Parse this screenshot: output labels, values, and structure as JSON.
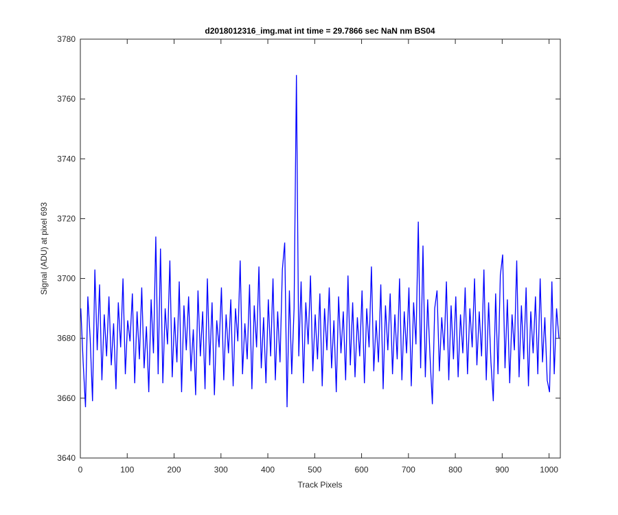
{
  "chart_data": {
    "type": "line",
    "title": "d2018012316_img.mat int time = 29.7866 sec  NaN nm BS04",
    "x_label": "Track Pixels",
    "y_label": "Signal (ADU) at pixel 693",
    "xlim": [
      0,
      1024
    ],
    "ylim": [
      3640,
      3780
    ],
    "xticks": [
      0,
      100,
      200,
      300,
      400,
      500,
      600,
      700,
      800,
      900,
      1000
    ],
    "yticks": [
      3640,
      3660,
      3680,
      3700,
      3720,
      3740,
      3760,
      3780
    ],
    "x": [
      1,
      6,
      11,
      16,
      21,
      26,
      31,
      36,
      41,
      46,
      51,
      56,
      61,
      66,
      71,
      76,
      81,
      86,
      91,
      96,
      101,
      106,
      111,
      116,
      121,
      126,
      131,
      136,
      141,
      146,
      151,
      156,
      161,
      166,
      171,
      176,
      181,
      186,
      191,
      196,
      201,
      206,
      211,
      216,
      221,
      226,
      231,
      236,
      241,
      246,
      251,
      256,
      261,
      266,
      271,
      276,
      281,
      286,
      291,
      296,
      301,
      306,
      311,
      316,
      321,
      326,
      331,
      336,
      341,
      346,
      351,
      356,
      361,
      366,
      371,
      376,
      381,
      386,
      391,
      396,
      401,
      406,
      411,
      416,
      421,
      426,
      431,
      436,
      441,
      446,
      451,
      456,
      461,
      466,
      471,
      476,
      481,
      486,
      491,
      496,
      501,
      506,
      511,
      516,
      521,
      526,
      531,
      536,
      541,
      546,
      551,
      556,
      561,
      566,
      571,
      576,
      581,
      586,
      591,
      596,
      601,
      606,
      611,
      616,
      621,
      626,
      631,
      636,
      641,
      646,
      651,
      656,
      661,
      666,
      671,
      676,
      681,
      686,
      691,
      696,
      701,
      706,
      711,
      716,
      721,
      726,
      731,
      736,
      741,
      746,
      751,
      756,
      761,
      766,
      771,
      776,
      781,
      786,
      791,
      796,
      801,
      806,
      811,
      816,
      821,
      826,
      831,
      836,
      841,
      846,
      851,
      856,
      861,
      866,
      871,
      876,
      881,
      886,
      891,
      896,
      901,
      906,
      911,
      916,
      921,
      926,
      931,
      936,
      941,
      946,
      951,
      956,
      961,
      966,
      971,
      976,
      981,
      986,
      991,
      996,
      1001,
      1006,
      1011,
      1016,
      1021
    ],
    "series": [
      {
        "name": "signal",
        "color": "#0000ff",
        "values": [
          3690,
          3672,
          3657,
          3694,
          3680,
          3659,
          3703,
          3676,
          3698,
          3666,
          3688,
          3674,
          3694,
          3671,
          3685,
          3663,
          3692,
          3677,
          3700,
          3668,
          3686,
          3679,
          3695,
          3665,
          3689,
          3673,
          3697,
          3670,
          3684,
          3662,
          3693,
          3675,
          3714,
          3668,
          3710,
          3665,
          3690,
          3678,
          3706,
          3667,
          3687,
          3672,
          3699,
          3662,
          3691,
          3676,
          3694,
          3669,
          3683,
          3661,
          3696,
          3674,
          3689,
          3663,
          3700,
          3671,
          3692,
          3661,
          3686,
          3677,
          3697,
          3666,
          3688,
          3675,
          3693,
          3664,
          3690,
          3679,
          3706,
          3668,
          3685,
          3673,
          3698,
          3663,
          3691,
          3677,
          3704,
          3670,
          3687,
          3665,
          3693,
          3674,
          3700,
          3666,
          3689,
          3672,
          3703,
          3712,
          3657,
          3696,
          3668,
          3690,
          3768,
          3674,
          3699,
          3665,
          3692,
          3678,
          3701,
          3669,
          3688,
          3673,
          3695,
          3664,
          3690,
          3676,
          3697,
          3670,
          3686,
          3662,
          3694,
          3675,
          3689,
          3666,
          3701,
          3671,
          3692,
          3667,
          3687,
          3674,
          3696,
          3665,
          3690,
          3677,
          3704,
          3669,
          3686,
          3672,
          3698,
          3663,
          3691,
          3676,
          3695,
          3668,
          3688,
          3673,
          3700,
          3666,
          3689,
          3675,
          3697,
          3664,
          3692,
          3678,
          3719,
          3670,
          3711,
          3667,
          3693,
          3674,
          3658,
          3690,
          3696,
          3669,
          3687,
          3676,
          3699,
          3666,
          3691,
          3673,
          3694,
          3667,
          3688,
          3675,
          3697,
          3668,
          3690,
          3677,
          3700,
          3671,
          3689,
          3674,
          3703,
          3666,
          3692,
          3672,
          3659,
          3695,
          3668,
          3701,
          3708,
          3670,
          3693,
          3665,
          3688,
          3676,
          3706,
          3667,
          3691,
          3673,
          3697,
          3664,
          3689,
          3675,
          3694,
          3668,
          3700,
          3672,
          3687,
          3666,
          3662,
          3699,
          3668,
          3690,
          3680
        ]
      }
    ]
  }
}
